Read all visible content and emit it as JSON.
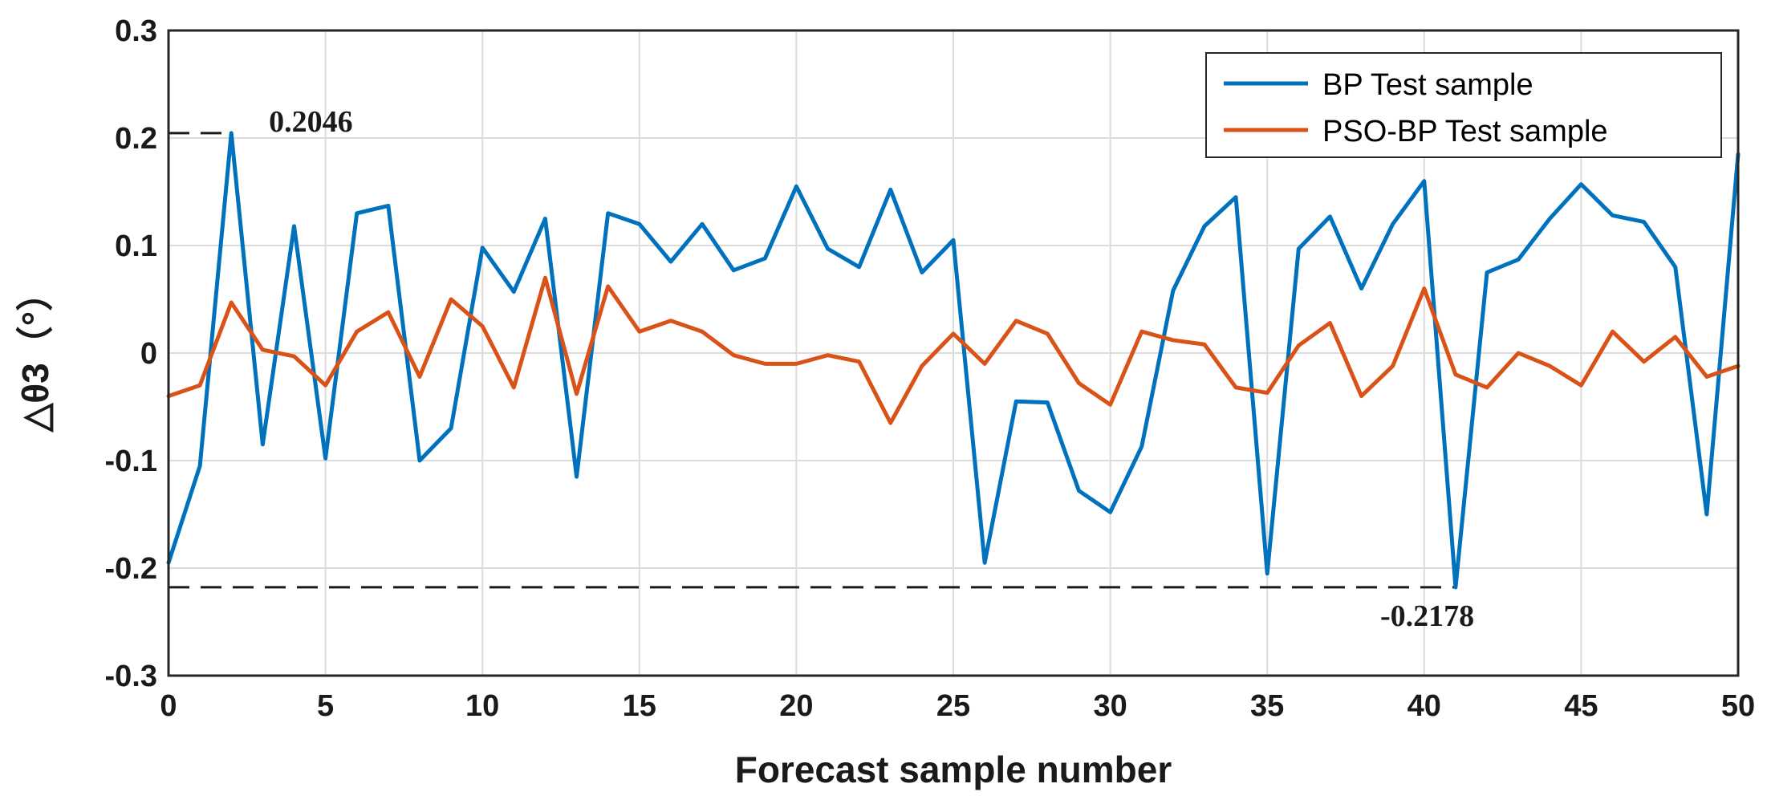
{
  "chart_data": {
    "type": "line",
    "title": "",
    "xlabel": "Forecast sample number",
    "ylabel": "△θ3（°）",
    "xlim": [
      0,
      50
    ],
    "ylim": [
      -0.3,
      0.3
    ],
    "xticks": [
      "0",
      "5",
      "10",
      "15",
      "20",
      "25",
      "30",
      "35",
      "40",
      "45",
      "50"
    ],
    "yticks": [
      "-0.3",
      "-0.2",
      "-0.1",
      "0",
      "0.1",
      "0.2",
      "0.3"
    ],
    "grid": true,
    "legend_position": "top-right",
    "x": [
      0,
      1,
      2,
      3,
      4,
      5,
      6,
      7,
      8,
      9,
      10,
      11,
      12,
      13,
      14,
      15,
      16,
      17,
      18,
      19,
      20,
      21,
      22,
      23,
      24,
      25,
      26,
      27,
      28,
      29,
      30,
      31,
      32,
      33,
      34,
      35,
      36,
      37,
      38,
      39,
      40,
      41,
      42,
      43,
      44,
      45,
      46,
      47,
      48,
      49,
      50
    ],
    "series": [
      {
        "name": "BP Test sample",
        "color": "#0072BD",
        "values": [
          -0.195,
          -0.105,
          0.2046,
          -0.085,
          0.118,
          -0.098,
          0.13,
          0.137,
          -0.1,
          -0.07,
          0.098,
          0.057,
          0.125,
          -0.115,
          0.13,
          0.12,
          0.085,
          0.12,
          0.077,
          0.088,
          0.155,
          0.097,
          0.08,
          0.152,
          0.075,
          0.105,
          -0.195,
          -0.045,
          -0.046,
          -0.128,
          -0.148,
          -0.087,
          0.058,
          0.118,
          0.145,
          -0.205,
          0.097,
          0.127,
          0.06,
          0.12,
          0.16,
          -0.2178,
          0.075,
          0.087,
          0.125,
          0.157,
          0.128,
          0.122,
          0.08,
          -0.15,
          0.185
        ]
      },
      {
        "name": "PSO-BP Test sample",
        "color": "#D95319",
        "values": [
          -0.04,
          -0.03,
          0.047,
          0.003,
          -0.003,
          -0.03,
          0.02,
          0.038,
          -0.022,
          0.05,
          0.025,
          -0.032,
          0.07,
          -0.038,
          0.062,
          0.02,
          0.03,
          0.02,
          -0.002,
          -0.01,
          -0.01,
          -0.002,
          -0.008,
          -0.065,
          -0.012,
          0.018,
          -0.01,
          0.03,
          0.018,
          -0.028,
          -0.048,
          0.02,
          0.012,
          0.008,
          -0.032,
          -0.037,
          0.007,
          0.028,
          -0.04,
          -0.012,
          0.06,
          -0.02,
          -0.032,
          0.0,
          -0.012,
          -0.03,
          0.02,
          -0.008,
          0.015,
          -0.022,
          -0.012
        ]
      }
    ],
    "annotations": [
      {
        "label": "0.2046",
        "value": 0.2046
      },
      {
        "label": "-0.2178",
        "value": -0.2178
      }
    ]
  }
}
